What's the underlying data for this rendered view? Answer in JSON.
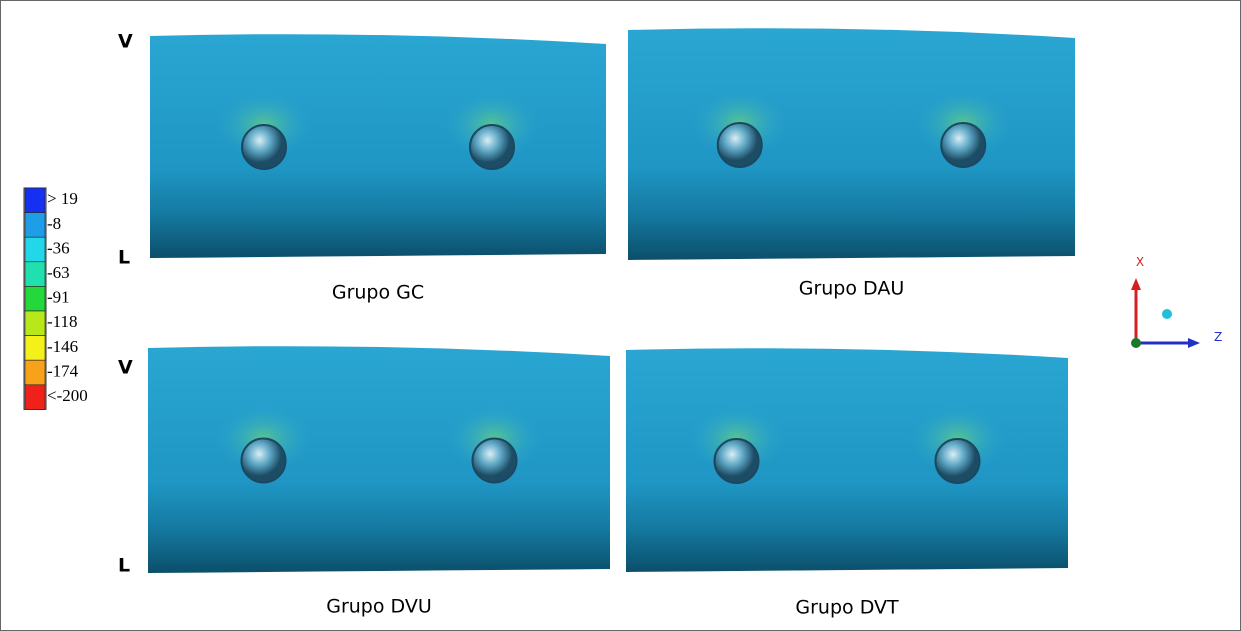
{
  "legend": {
    "items": [
      {
        "label": "> 19",
        "color": "#1530f0"
      },
      {
        "label": "-8",
        "color": "#1f9ee8"
      },
      {
        "label": "-36",
        "color": "#22d8e8"
      },
      {
        "label": "-63",
        "color": "#20e0b0"
      },
      {
        "label": "-91",
        "color": "#22d83a"
      },
      {
        "label": "-118",
        "color": "#b8e81a"
      },
      {
        "label": "-146",
        "color": "#f4f01a"
      },
      {
        "label": "-174",
        "color": "#f7a21a"
      },
      {
        "label": "<-200",
        "color": "#f0201a"
      }
    ]
  },
  "rows": [
    {
      "top": "V",
      "bottom": "L"
    },
    {
      "top": "V",
      "bottom": "L"
    }
  ],
  "panels": [
    {
      "title": "Grupo GC"
    },
    {
      "title": "Grupo DAU"
    },
    {
      "title": "Grupo DVU"
    },
    {
      "title": "Grupo DVT"
    }
  ],
  "axes": {
    "x": "X",
    "z": "Z"
  }
}
